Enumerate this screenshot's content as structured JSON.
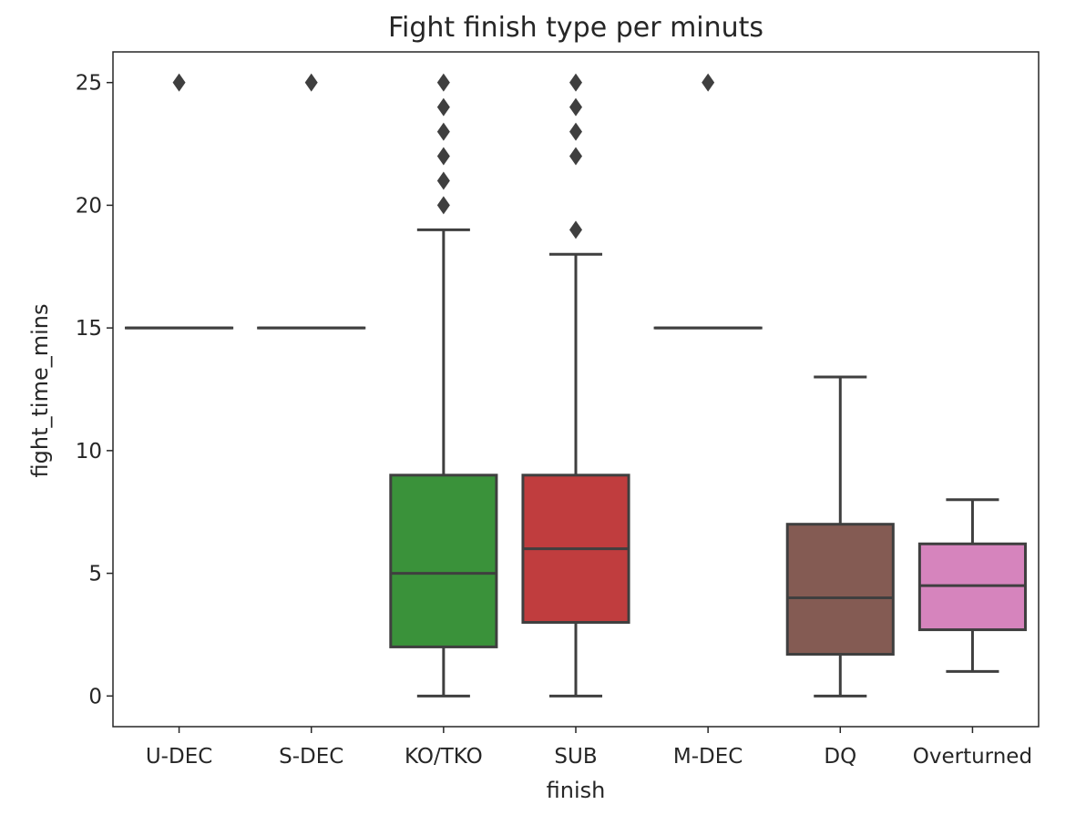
{
  "chart_data": {
    "type": "box",
    "title": "Fight finish type per minuts",
    "xlabel": "finish",
    "ylabel": "fight_time_mins",
    "ylim": [
      -1.25,
      26.25
    ],
    "yticks": [
      0,
      5,
      10,
      15,
      20,
      25
    ],
    "grid": false,
    "legend": "none",
    "categories": [
      "U-DEC",
      "S-DEC",
      "KO/TKO",
      "SUB",
      "M-DEC",
      "DQ",
      "Overturned"
    ],
    "boxes": [
      {
        "category": "U-DEC",
        "color": "#3274a1",
        "whisker_low": 15,
        "q1": 15,
        "median": 15,
        "q3": 15,
        "whisker_high": 15,
        "outliers": [
          25
        ]
      },
      {
        "category": "S-DEC",
        "color": "#e1812c",
        "whisker_low": 15,
        "q1": 15,
        "median": 15,
        "q3": 15,
        "whisker_high": 15,
        "outliers": [
          25
        ]
      },
      {
        "category": "KO/TKO",
        "color": "#3a923a",
        "whisker_low": 0,
        "q1": 2,
        "median": 5,
        "q3": 9,
        "whisker_high": 19,
        "outliers": [
          20,
          21,
          22,
          23,
          24,
          25
        ]
      },
      {
        "category": "SUB",
        "color": "#c03d3e",
        "whisker_low": 0,
        "q1": 3,
        "median": 6,
        "q3": 9,
        "whisker_high": 18,
        "outliers": [
          19,
          22,
          23,
          24,
          25
        ]
      },
      {
        "category": "M-DEC",
        "color": "#9372b2",
        "whisker_low": 15,
        "q1": 15,
        "median": 15,
        "q3": 15,
        "whisker_high": 15,
        "outliers": [
          25
        ]
      },
      {
        "category": "DQ",
        "color": "#845b53",
        "whisker_low": 0,
        "q1": 1.7,
        "median": 4,
        "q3": 7,
        "whisker_high": 13,
        "outliers": []
      },
      {
        "category": "Overturned",
        "color": "#d684bd",
        "whisker_low": 1,
        "q1": 2.7,
        "median": 4.5,
        "q3": 6.2,
        "whisker_high": 8,
        "outliers": []
      }
    ]
  }
}
